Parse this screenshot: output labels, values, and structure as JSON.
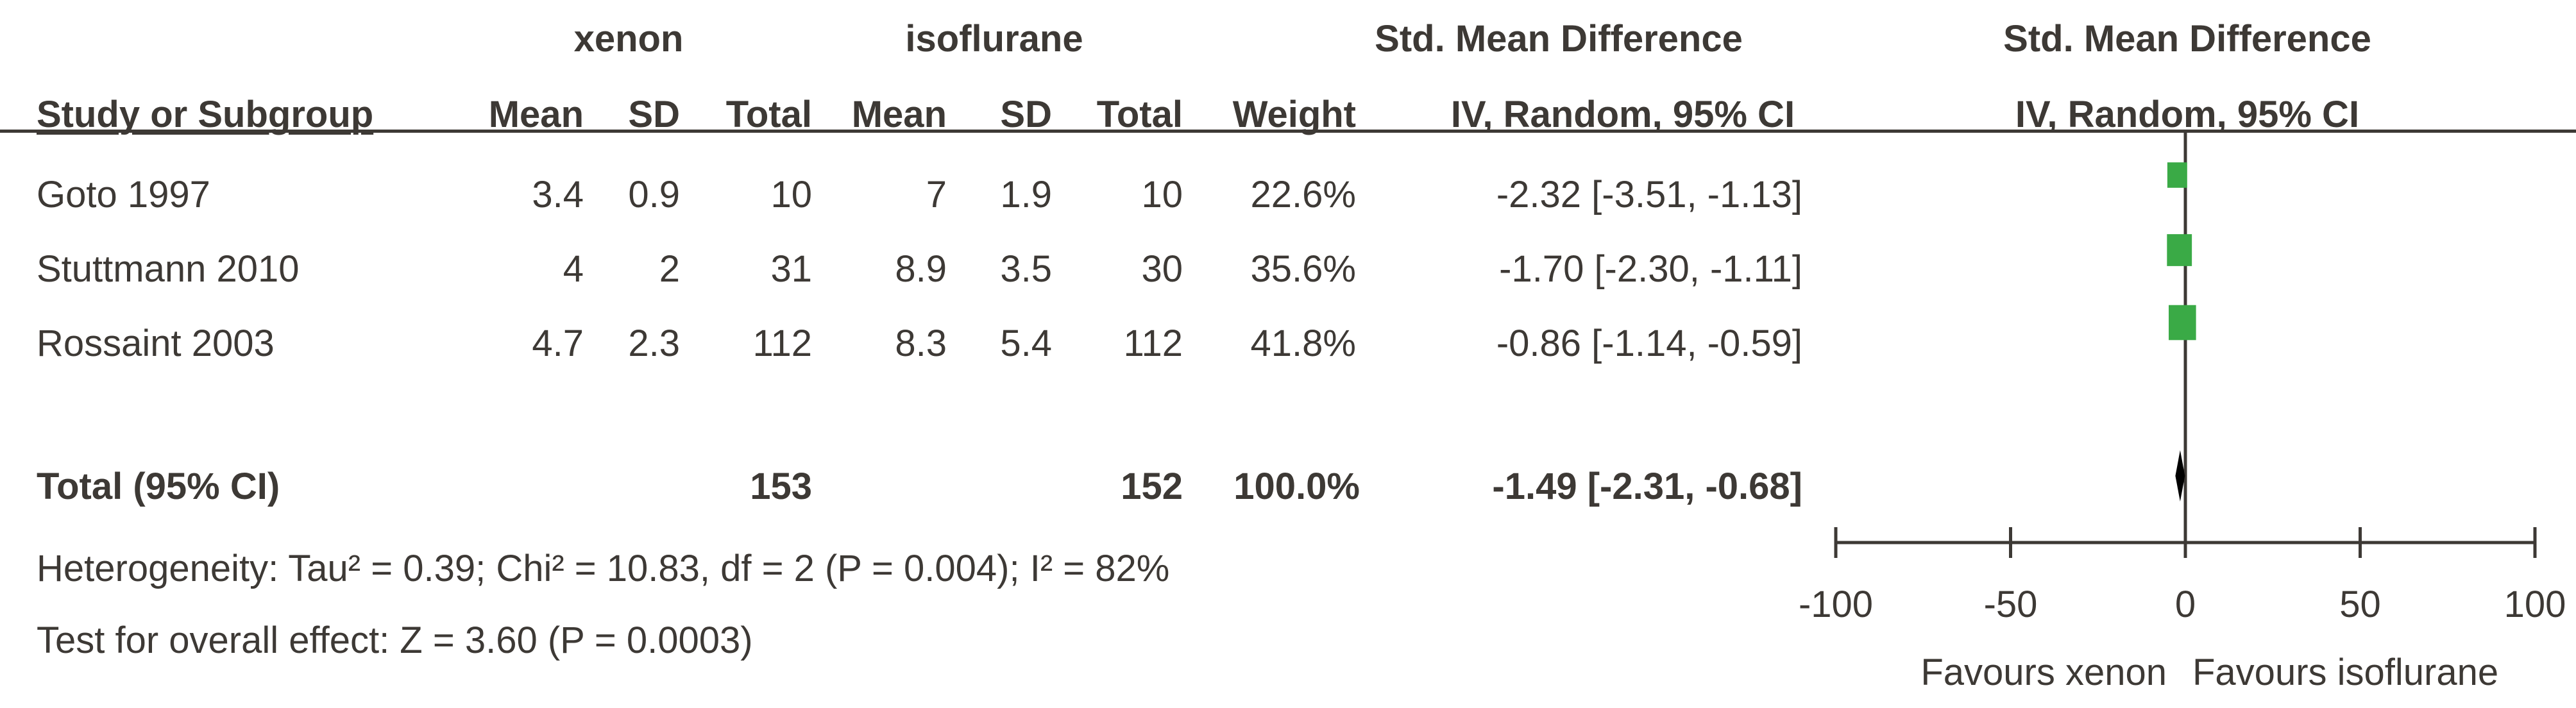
{
  "groups": {
    "experimental": "xenon",
    "control": "isoflurane",
    "effect_header": "Std. Mean Difference",
    "plot_header": "Std. Mean Difference"
  },
  "columns": {
    "study": "Study or Subgroup",
    "mean_e": "Mean",
    "sd_e": "SD",
    "total_e": "Total",
    "mean_c": "Mean",
    "sd_c": "SD",
    "total_c": "Total",
    "weight": "Weight",
    "ci": "IV, Random, 95% CI",
    "plot_ci": "IV, Random, 95% CI"
  },
  "studies": [
    {
      "name": "Goto 1997",
      "mean_e": "3.4",
      "sd_e": "0.9",
      "total_e": "10",
      "mean_c": "7",
      "sd_c": "1.9",
      "total_c": "10",
      "weight": "22.6%",
      "ci_text": "-2.32 [-3.51, -1.13]"
    },
    {
      "name": "Stuttmann 2010",
      "mean_e": "4",
      "sd_e": "2",
      "total_e": "31",
      "mean_c": "8.9",
      "sd_c": "3.5",
      "total_c": "30",
      "weight": "35.6%",
      "ci_text": "-1.70 [-2.30, -1.11]"
    },
    {
      "name": "Rossaint 2003",
      "mean_e": "4.7",
      "sd_e": "2.3",
      "total_e": "112",
      "mean_c": "8.3",
      "sd_c": "5.4",
      "total_c": "112",
      "weight": "41.8%",
      "ci_text": "-0.86 [-1.14, -0.59]"
    }
  ],
  "total": {
    "label": "Total (95% CI)",
    "total_e": "153",
    "total_c": "152",
    "weight": "100.0%",
    "ci_text": "-1.49 [-2.31, -0.68]"
  },
  "heterogeneity": "Heterogeneity: Tau² = 0.39; Chi² = 10.83, df = 2 (P = 0.004); I² = 82%",
  "overall_effect": "Test for overall effect: Z = 3.60 (P = 0.0003)",
  "favours": {
    "left": "Favours xenon",
    "right": "Favours isoflurane"
  },
  "colors": {
    "marker": "#3aaa46",
    "text": "#3d3935"
  },
  "chart_data": {
    "type": "scatter",
    "subtype": "forest",
    "title": "Std. Mean Difference",
    "xlabel": "IV, Random, 95% CI",
    "xlim": [
      -100,
      100
    ],
    "xticks": [
      -100,
      -50,
      0,
      50,
      100
    ],
    "null_line": 0,
    "series": [
      {
        "points": [
          {
            "study": "Goto 1997",
            "estimate": -2.32,
            "ci_low": -3.51,
            "ci_high": -1.13,
            "weight": 22.6
          },
          {
            "study": "Stuttmann 2010",
            "estimate": -1.7,
            "ci_low": -2.3,
            "ci_high": -1.11,
            "weight": 35.6
          },
          {
            "study": "Rossaint 2003",
            "estimate": -0.86,
            "ci_low": -1.14,
            "ci_high": -0.59,
            "weight": 41.8
          }
        ]
      }
    ],
    "pooled": {
      "estimate": -1.49,
      "ci_low": -2.31,
      "ci_high": -0.68
    }
  }
}
